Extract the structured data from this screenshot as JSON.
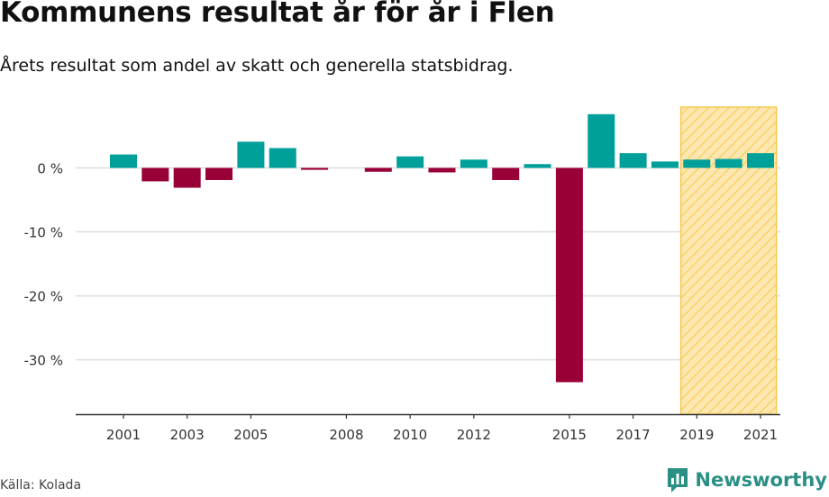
{
  "title": "Kommunens resultat år för år i Flen",
  "subtitle": "Årets resultat som andel av skatt och generella statsbidrag.",
  "source": "Källa: Kolada",
  "brand": {
    "name": "Newsworthy",
    "logo_icon": "bar-chart-speech-bubble-icon"
  },
  "colors": {
    "positive": "#00a09a",
    "negative": "#990038",
    "highlight_fill": "#fde7b0",
    "highlight_stroke": "#f8c84a",
    "grid": "#dddddd",
    "axis": "#333333"
  },
  "chart_data": {
    "type": "bar",
    "x": [
      2001,
      2002,
      2003,
      2004,
      2005,
      2006,
      2007,
      2008,
      2009,
      2010,
      2011,
      2012,
      2013,
      2014,
      2015,
      2016,
      2017,
      2018,
      2019,
      2020,
      2021
    ],
    "values": [
      2.1,
      -2.1,
      -3.1,
      -1.9,
      4.1,
      3.1,
      -0.3,
      0,
      -0.6,
      1.8,
      -0.7,
      1.3,
      -1.9,
      0.6,
      -33.5,
      8.4,
      2.3,
      1.0,
      1.3,
      1.4,
      2.3
    ],
    "x_tick_labels": [
      "2001",
      "2003",
      "2005",
      "2008",
      "2010",
      "2012",
      "2015",
      "2017",
      "2019",
      "2021"
    ],
    "y_ticks": [
      0,
      -10,
      -20,
      -30
    ],
    "y_tick_labels": [
      "0 %",
      "-10 %",
      "-20 %",
      "-30 %"
    ],
    "ylim": [
      -38.5,
      9.5
    ],
    "highlighted_range": [
      2019,
      2021
    ],
    "grid": true
  }
}
